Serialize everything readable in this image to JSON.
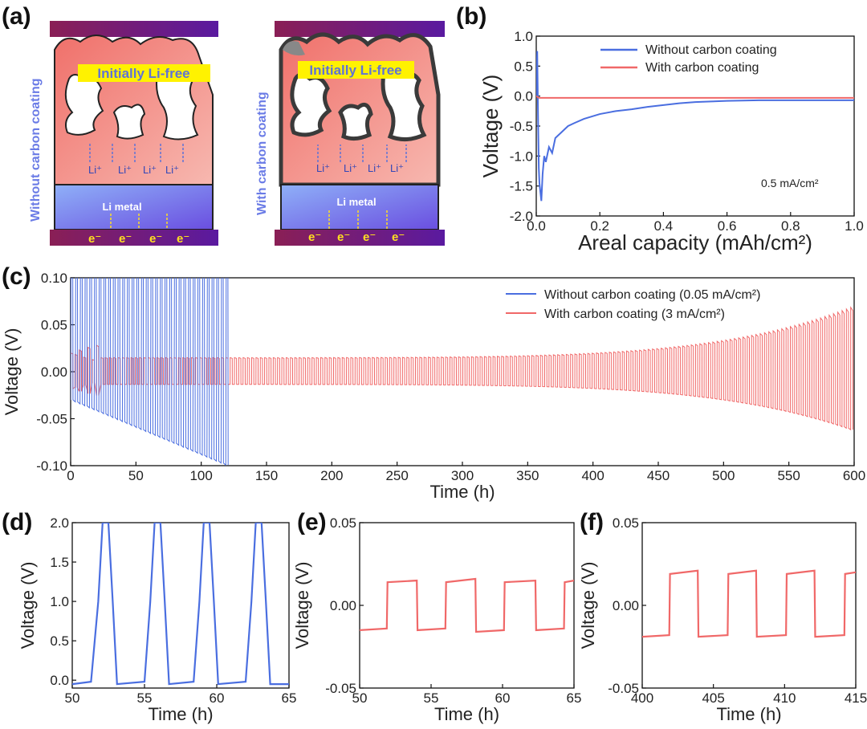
{
  "panel_labels": [
    "(a)",
    "(b)",
    "(c)",
    "(d)",
    "(e)",
    "(f)"
  ],
  "schematic": {
    "left": {
      "side_label": "Without carbon coating",
      "banner": "Initially Li-free",
      "li_ions": [
        "Li⁺",
        "Li⁺",
        "Li⁺",
        "Li⁺"
      ],
      "metal_label": "Li metal",
      "electrons": [
        "e⁻",
        "e⁻",
        "e⁻",
        "e⁻"
      ]
    },
    "right": {
      "side_label": "With carbon coating",
      "banner": "Initially Li-free",
      "li_ions": [
        "Li⁺",
        "Li⁺",
        "Li⁺",
        "Li⁺"
      ],
      "metal_label": "Li metal",
      "electrons": [
        "e⁻",
        "e⁻",
        "e⁻",
        "e⁻"
      ]
    },
    "colors": {
      "current_collector": "#7a1a6a",
      "host": "#f08a82",
      "li_metal": "#7f8cf2",
      "banner": "#fff200",
      "coating": "#3a3a3a"
    }
  },
  "chart_data": [
    {
      "panel": "(b)",
      "type": "line",
      "xlabel": "Areal capacity (mAh/cm²)",
      "ylabel": "Voltage (V)",
      "xlim": [
        0,
        1.0
      ],
      "ylim": [
        -2.0,
        1.0
      ],
      "xticks": [
        "0.0",
        "0.2",
        "0.4",
        "0.6",
        "0.8",
        "1.0"
      ],
      "yticks": [
        "1.0",
        "0.5",
        "0.0",
        "-0.5",
        "-1.0",
        "-1.5",
        "-2.0"
      ],
      "annotation": "0.5 mA/cm²",
      "legend_position": "top-right",
      "series": [
        {
          "name": "Without carbon coating",
          "color": "#4a6ee0",
          "x": [
            0,
            0.003,
            0.006,
            0.008,
            0.01,
            0.013,
            0.016,
            0.02,
            0.025,
            0.03,
            0.04,
            0.05,
            0.06,
            0.08,
            0.1,
            0.12,
            0.15,
            0.2,
            0.25,
            0.3,
            0.35,
            0.4,
            0.45,
            0.5,
            0.55,
            0.6,
            0.7,
            0.8,
            0.9,
            1.0
          ],
          "y": [
            0.0,
            0.75,
            -0.5,
            -1.2,
            -1.45,
            -1.6,
            -1.75,
            -1.3,
            -1.0,
            -1.1,
            -0.85,
            -0.95,
            -0.7,
            -0.6,
            -0.5,
            -0.45,
            -0.38,
            -0.3,
            -0.25,
            -0.22,
            -0.18,
            -0.15,
            -0.12,
            -0.1,
            -0.09,
            -0.08,
            -0.07,
            -0.07,
            -0.07,
            -0.07
          ]
        },
        {
          "name": "With carbon coating",
          "color": "#f06868",
          "x": [
            0,
            0.005,
            0.01,
            0.02,
            1.0
          ],
          "y": [
            0.0,
            -0.02,
            -0.03,
            -0.03,
            -0.03
          ]
        }
      ]
    },
    {
      "panel": "(c)",
      "type": "line",
      "xlabel": "Time (h)",
      "ylabel": "Voltage (V)",
      "xlim": [
        0,
        600
      ],
      "ylim": [
        -0.1,
        0.1
      ],
      "xticks": [
        "0",
        "50",
        "100",
        "150",
        "200",
        "250",
        "300",
        "350",
        "400",
        "450",
        "500",
        "550",
        "600"
      ],
      "yticks": [
        "0.10",
        "0.05",
        "0.00",
        "-0.05",
        "-0.10"
      ],
      "legend_position": "top-right",
      "series": [
        {
          "name": "Without carbon coating (0.05 mA/cm²)",
          "color": "#4a6ee0",
          "time_range": [
            0,
            120
          ],
          "upper_voltage": 0.1,
          "lower_voltage_range": [
            -0.03,
            -0.1
          ],
          "cycle_period_h": 3.6
        },
        {
          "name": "With carbon coating (3 mA/cm²)",
          "color": "#f06868",
          "time_range": [
            0,
            600
          ],
          "amplitude_start": 0.015,
          "amplitude_end": 0.07,
          "cycle_period_h": 3.3
        }
      ]
    },
    {
      "panel": "(d)",
      "type": "line",
      "xlabel": "Time (h)",
      "ylabel": "Voltage (V)",
      "xlim": [
        50,
        65
      ],
      "ylim": [
        -0.1,
        2.0
      ],
      "xticks": [
        "50",
        "55",
        "60",
        "65"
      ],
      "yticks": [
        "2.0",
        "1.5",
        "1.0",
        "0.5",
        "0.0"
      ],
      "series": [
        {
          "name": "",
          "color": "#4a6ee0",
          "x": [
            50,
            51.3,
            51.8,
            52.1,
            52.5,
            52.8,
            53.1,
            55.0,
            55.4,
            55.7,
            56.1,
            56.4,
            56.7,
            58.4,
            58.8,
            59.1,
            59.5,
            59.8,
            60.1,
            62.0,
            62.4,
            62.7,
            63.1,
            63.4,
            63.7,
            65
          ],
          "y": [
            -0.05,
            -0.02,
            1.0,
            2.0,
            2.0,
            1.0,
            -0.05,
            -0.02,
            1.0,
            2.0,
            2.0,
            1.0,
            -0.05,
            -0.02,
            1.0,
            2.0,
            2.0,
            1.0,
            -0.05,
            -0.02,
            1.0,
            2.0,
            2.0,
            1.0,
            -0.05,
            -0.05
          ]
        }
      ]
    },
    {
      "panel": "(e)",
      "type": "line",
      "xlabel": "Time (h)",
      "ylabel": "Voltage (V)",
      "xlim": [
        50,
        65
      ],
      "ylim": [
        -0.05,
        0.05
      ],
      "xticks": [
        "50",
        "55",
        "60",
        "65"
      ],
      "yticks": [
        "0.05",
        "0.00",
        "-0.05"
      ],
      "series": [
        {
          "name": "",
          "color": "#f06868",
          "x": [
            50,
            51.9,
            51.95,
            54.0,
            54.05,
            56.0,
            56.05,
            58.1,
            58.15,
            60.1,
            60.15,
            62.3,
            62.35,
            64.3,
            64.35,
            65
          ],
          "y": [
            -0.015,
            -0.014,
            0.014,
            0.015,
            -0.015,
            -0.014,
            0.014,
            0.016,
            -0.016,
            -0.015,
            0.014,
            0.015,
            -0.015,
            -0.014,
            0.014,
            0.015
          ]
        }
      ]
    },
    {
      "panel": "(f)",
      "type": "line",
      "xlabel": "Time (h)",
      "ylabel": "Voltage (V)",
      "xlim": [
        400,
        415
      ],
      "ylim": [
        -0.05,
        0.05
      ],
      "xticks": [
        "400",
        "405",
        "410",
        "415"
      ],
      "yticks": [
        "0.05",
        "0.00",
        "-0.05"
      ],
      "series": [
        {
          "name": "",
          "color": "#f06868",
          "x": [
            400,
            401.9,
            401.95,
            403.9,
            403.95,
            406.0,
            406.05,
            408.0,
            408.05,
            410.1,
            410.15,
            412.1,
            412.15,
            414.2,
            414.25,
            415
          ],
          "y": [
            -0.019,
            -0.018,
            0.019,
            0.021,
            -0.019,
            -0.018,
            0.019,
            0.021,
            -0.019,
            -0.018,
            0.019,
            0.021,
            -0.019,
            -0.018,
            0.019,
            0.02
          ]
        }
      ]
    }
  ]
}
